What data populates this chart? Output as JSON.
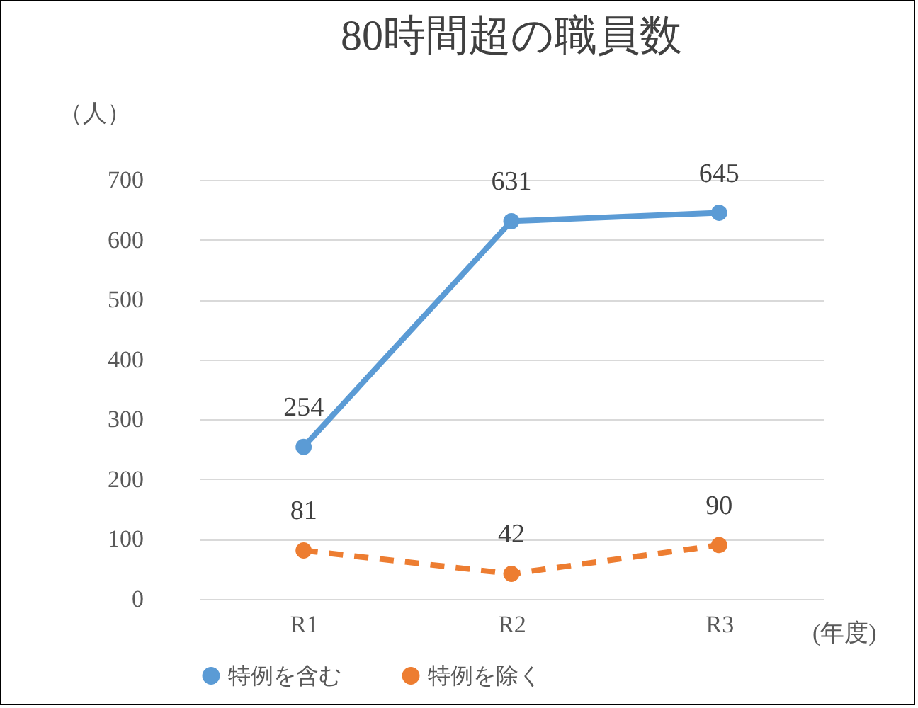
{
  "chart_data": {
    "type": "line",
    "title": "80時間超の職員数",
    "xlabel": "(年度)",
    "ylabel": "（人）",
    "categories": [
      "R1",
      "R2",
      "R3"
    ],
    "series": [
      {
        "name": "特例を含む",
        "color": "#5b9bd5",
        "values": [
          254,
          631,
          645
        ],
        "line_style": "solid"
      },
      {
        "name": "特例を除く",
        "color": "#ed7d31",
        "values": [
          81,
          42,
          90
        ],
        "line_style": "dashed"
      }
    ],
    "ylim": [
      0,
      700
    ],
    "yticks": [
      0,
      100,
      200,
      300,
      400,
      500,
      600,
      700
    ],
    "grid": "y",
    "legend": "bottom",
    "marker": "circle",
    "data_labels": true
  }
}
